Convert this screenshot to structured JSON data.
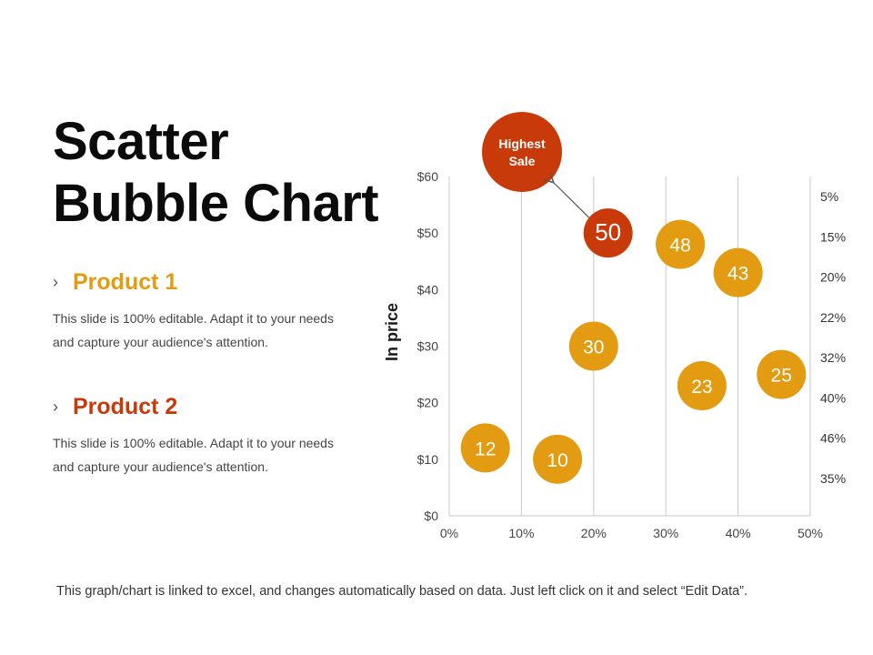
{
  "slide": {
    "title_line1": "Scatter",
    "title_line2": "Bubble Chart",
    "footer": "This graph/chart is linked to excel, and changes automatically  based on data. Just left click on it and select “Edit Data”."
  },
  "products": [
    {
      "chevron": "›",
      "name": "Product 1",
      "color": "#E39B12",
      "desc_line1": "This slide is 100% editable. Adapt it to your needs",
      "desc_line2": "and capture your audience's attention."
    },
    {
      "chevron": "›",
      "name": "Product 2",
      "color": "#C93A0A",
      "desc_line1": "This slide is 100% editable. Adapt it to your needs",
      "desc_line2": "and capture your audience's attention."
    }
  ],
  "chart_data": {
    "type": "scatter",
    "ylabel": "In price",
    "xlim": [
      0,
      50
    ],
    "ylim": [
      0,
      60
    ],
    "x_ticks": [
      "0%",
      "10%",
      "20%",
      "30%",
      "40%",
      "50%"
    ],
    "y_ticks": [
      "$0",
      "$10",
      "$20",
      "$30",
      "$40",
      "$50",
      "$60"
    ],
    "vertical_grid": true,
    "right_labels": [
      "5%",
      "15%",
      "20%",
      "22%",
      "32%",
      "40%",
      "46%",
      "35%"
    ],
    "colors": {
      "product1": "#E39B12",
      "product2": "#C93A0A",
      "grid": "#c8c8c8",
      "axis_text": "#444444"
    },
    "points": [
      {
        "x": 5,
        "y": 12,
        "label": "12",
        "series": "Product 1"
      },
      {
        "x": 15,
        "y": 10,
        "label": "10",
        "series": "Product 1"
      },
      {
        "x": 20,
        "y": 30,
        "label": "30",
        "series": "Product 1"
      },
      {
        "x": 22,
        "y": 50,
        "label": "50",
        "series": "Product 2"
      },
      {
        "x": 32,
        "y": 48,
        "label": "48",
        "series": "Product 1"
      },
      {
        "x": 35,
        "y": 23,
        "label": "23",
        "series": "Product 1"
      },
      {
        "x": 40,
        "y": 43,
        "label": "43",
        "series": "Product 1"
      },
      {
        "x": 46,
        "y": 25,
        "label": "25",
        "series": "Product 1"
      }
    ],
    "callout": {
      "text_line1": "Highest",
      "text_line2": "Sale",
      "points_to": "50"
    }
  }
}
